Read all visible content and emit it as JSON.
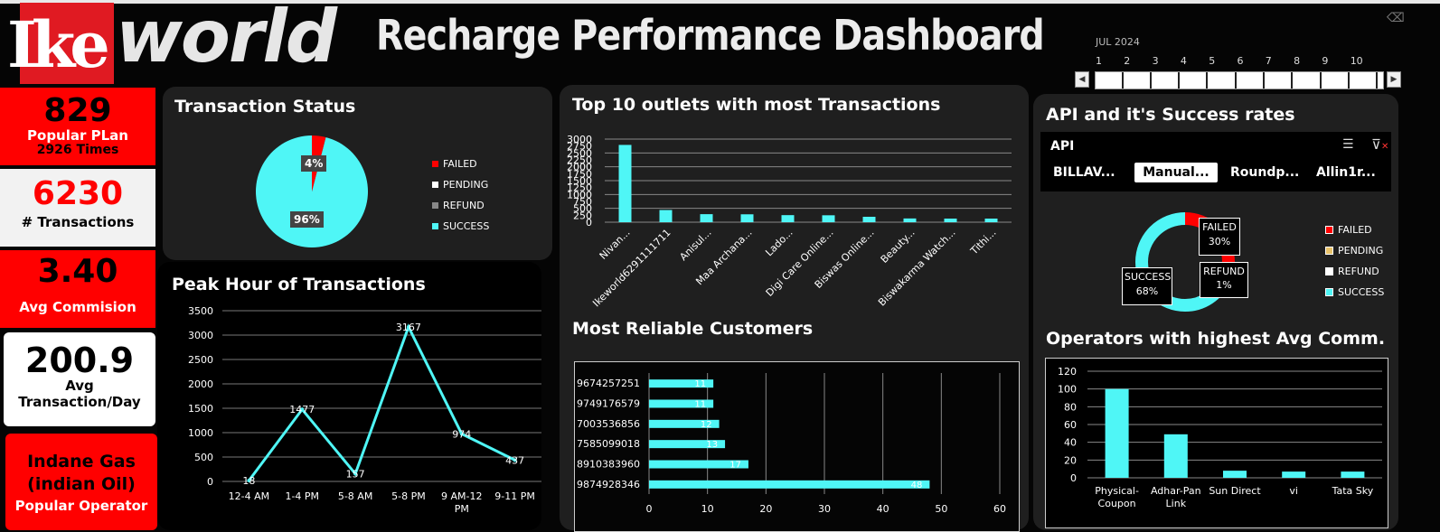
{
  "header": {
    "logo_text_ike": "Ike",
    "logo_text_world": "world",
    "title": "Recharge Performance Dashboard"
  },
  "timeline": {
    "label": "JUL 2024",
    "days": [
      "1",
      "2",
      "3",
      "4",
      "5",
      "6",
      "7",
      "8",
      "9",
      "10"
    ]
  },
  "kpis": {
    "popular_plan_value": "829",
    "popular_plan_label": "Popular PLan",
    "popular_plan_times": "2926 Times",
    "transactions_value": "6230",
    "transactions_label": "# Transactions",
    "commission_value": "3.40",
    "commission_label": "Avg Commision",
    "avg_day_value": "200.9",
    "avg_day_label1": "Avg",
    "avg_day_label2": "Transaction/Day",
    "operator_line1": "Indane Gas",
    "operator_line2": "(indian Oil)",
    "operator_label": "Popular Operator"
  },
  "transaction_status": {
    "title": "Transaction Status",
    "failed_pct_label": "4%",
    "success_pct_label": "96%",
    "legend": [
      "FAILED",
      "PENDING",
      "REFUND",
      "SUCCESS"
    ]
  },
  "peak_hour": {
    "title": "Peak Hour of Transactions"
  },
  "top_outlets": {
    "title": "Top 10 outlets with most Transactions"
  },
  "reliable_customers": {
    "title": "Most Reliable Customers"
  },
  "api_panel": {
    "title": "API and it's Success rates",
    "slicer_header": "API",
    "slicer_buttons": [
      "BILLAV...",
      "Manual...",
      "Roundp...",
      "Allin1r..."
    ],
    "selected_button": "Manual...",
    "donut_labels": {
      "failed": "FAILED",
      "failed_pct": "30%",
      "success": "SUCCESS",
      "success_pct": "68%",
      "refund": "REFUND",
      "refund_pct": "1%"
    },
    "legend": [
      "FAILED",
      "PENDING",
      "REFUND",
      "SUCCESS"
    ]
  },
  "operators_panel": {
    "title": "Operators with highest Avg Comm."
  },
  "colors": {
    "red": "#ff0000",
    "cyan": "#4ff6f6",
    "kpi_red": "#ff0000",
    "kpi_white": "#f2f2f2",
    "panel_bg": "#1f1f1f"
  },
  "chart_data": [
    {
      "id": "transaction_status",
      "type": "pie",
      "categories": [
        "FAILED",
        "PENDING",
        "REFUND",
        "SUCCESS"
      ],
      "values": [
        4,
        0,
        0,
        96
      ],
      "title": "Transaction Status"
    },
    {
      "id": "peak_hour",
      "type": "line",
      "categories": [
        "12-4 AM",
        "1-4 PM",
        "5-8 AM",
        "5-8 PM",
        "9 AM-12 PM",
        "9-11 PM"
      ],
      "values": [
        18,
        1477,
        157,
        3167,
        974,
        437
      ],
      "title": "Peak Hour of Transactions",
      "ylim": [
        0,
        3500
      ],
      "yticks": [
        0,
        500,
        1000,
        1500,
        2000,
        2500,
        3000,
        3500
      ],
      "grid": true
    },
    {
      "id": "top_outlets",
      "type": "bar",
      "categories": [
        "Nivan...",
        "Ikeworld6291111711",
        "Anisul...",
        "Maa Archana...",
        "Lado...",
        "Digi Care Online...",
        "Biswas Online...",
        "Beauty...",
        "Biswakarma Watch...",
        "Tithi..."
      ],
      "values": [
        2790,
        440,
        290,
        285,
        255,
        250,
        195,
        135,
        130,
        130
      ],
      "title": "Top 10 outlets with most Transactions",
      "ylim": [
        0,
        3000
      ],
      "yticks": [
        0,
        250,
        500,
        750,
        1000,
        1250,
        1500,
        1750,
        2000,
        2250,
        2500,
        2750,
        3000
      ],
      "grid": true
    },
    {
      "id": "reliable_customers",
      "type": "bar",
      "orientation": "horizontal",
      "categories": [
        "9674257251",
        "9749176579",
        "7003536856",
        "7585099018",
        "8910383960",
        "9874928346"
      ],
      "values": [
        11,
        11,
        12,
        13,
        17,
        48
      ],
      "title": "Most Reliable Customers",
      "xlim": [
        0,
        60
      ],
      "xticks": [
        0,
        10,
        20,
        30,
        40,
        50,
        60
      ],
      "grid": true
    },
    {
      "id": "api_success",
      "type": "pie",
      "categories": [
        "FAILED",
        "PENDING",
        "REFUND",
        "SUCCESS"
      ],
      "values": [
        30,
        0,
        1,
        68
      ],
      "title": "API and it's Success rates"
    },
    {
      "id": "operators_avg_comm",
      "type": "bar",
      "categories": [
        "Physical-Coupon",
        "Adhar-Pan Link",
        "Sun Direct",
        "vi",
        "Tata Sky"
      ],
      "values": [
        100,
        49,
        8,
        7,
        7
      ],
      "title": "Operators with highest Avg Comm.",
      "ylim": [
        0,
        120
      ],
      "yticks": [
        0,
        20,
        40,
        60,
        80,
        100,
        120
      ],
      "grid": true
    }
  ]
}
